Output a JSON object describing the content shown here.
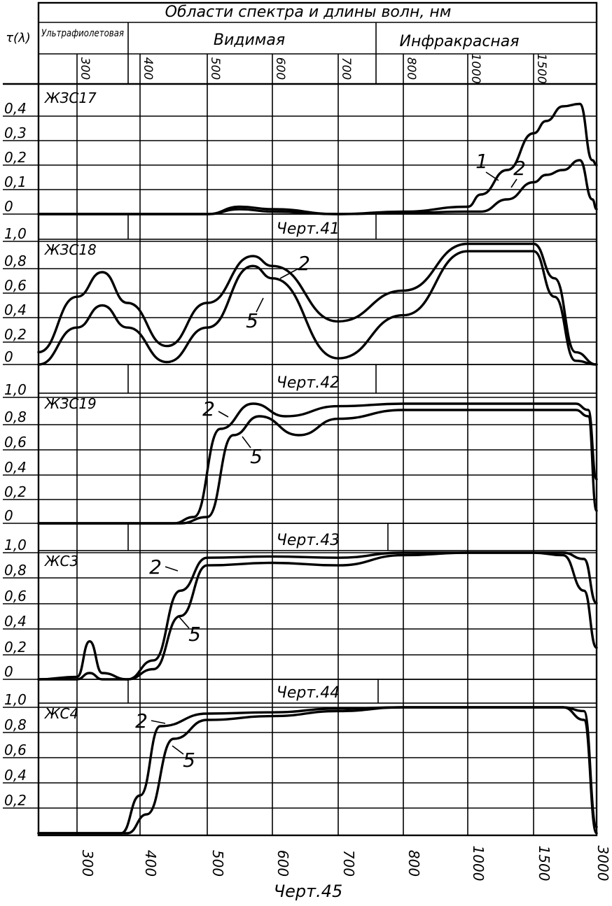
{
  "header": {
    "title": "Области спектра и длины волн, нм",
    "y_symbol": "τ(λ)",
    "regions": [
      "Ультрафиолетовая",
      "Видимая",
      "Инфракрасная"
    ],
    "wavelength_ticks": [
      "300",
      "400",
      "500",
      "600",
      "700",
      "800",
      "1000",
      "1500"
    ]
  },
  "x_axis_ticks": [
    "300",
    "400",
    "500",
    "600",
    "700",
    "800",
    "1000",
    "1500",
    "3000"
  ],
  "chart_data": [
    {
      "type": "line",
      "panel_label": "ЖЗС17",
      "caption": "Черт.41",
      "ylim": [
        0,
        0.5
      ],
      "y_ticks": [
        "0",
        "0,1",
        "0,2",
        "0,3",
        "0,4"
      ],
      "x_scale": "piecewise-log-like (labels at 300, 400, 500, 600, 700, 800, 1000, 1500, 3000 nm)",
      "series": [
        {
          "name": "1",
          "x": [
            250,
            500,
            550,
            600,
            700,
            800,
            1000,
            1100,
            1300,
            1500,
            1800,
            2200,
            2600,
            2900,
            3000
          ],
          "y": [
            0,
            0,
            0.03,
            0.02,
            0,
            0.01,
            0.03,
            0.08,
            0.18,
            0.33,
            0.38,
            0.44,
            0.45,
            0.22,
            0.2
          ]
        },
        {
          "name": "2",
          "x": [
            250,
            500,
            550,
            600,
            700,
            800,
            1000,
            1100,
            1300,
            1500,
            1800,
            2200,
            2600,
            2900,
            3000
          ],
          "y": [
            0,
            0,
            0.02,
            0.01,
            0,
            0.005,
            0.01,
            0.01,
            0.06,
            0.13,
            0.16,
            0.18,
            0.22,
            0.06,
            0.02
          ]
        }
      ]
    },
    {
      "type": "line",
      "panel_label": "ЖЗС18",
      "caption": "Черт.42",
      "ylim": [
        0,
        1.0
      ],
      "y_ticks": [
        "0",
        "0,2",
        "0,4",
        "0,6",
        "0,8",
        "1,0"
      ],
      "series": [
        {
          "name": "2",
          "x": [
            250,
            300,
            340,
            380,
            440,
            500,
            570,
            600,
            700,
            800,
            1000,
            1500,
            2000,
            2500,
            3000
          ],
          "y": [
            0.1,
            0.55,
            0.75,
            0.5,
            0.15,
            0.5,
            0.88,
            0.8,
            0.35,
            0.6,
            0.98,
            0.98,
            0.7,
            0.1,
            0
          ]
        },
        {
          "name": "5",
          "x": [
            250,
            300,
            340,
            380,
            440,
            500,
            570,
            600,
            700,
            800,
            1000,
            1500,
            2000,
            2500,
            3000
          ],
          "y": [
            0,
            0.3,
            0.48,
            0.3,
            0.02,
            0.3,
            0.8,
            0.7,
            0.05,
            0.4,
            0.92,
            0.92,
            0.55,
            0.03,
            0
          ]
        }
      ]
    },
    {
      "type": "line",
      "panel_label": "ЖЗС19",
      "caption": "Черт.43",
      "ylim": [
        0,
        1.0
      ],
      "y_ticks": [
        "0",
        "0,2",
        "0,4",
        "0,6",
        "0,8",
        "1,0"
      ],
      "series": [
        {
          "name": "2",
          "x": [
            250,
            450,
            480,
            520,
            570,
            620,
            700,
            800,
            1000,
            1500,
            2500,
            2800,
            3000
          ],
          "y": [
            0,
            0,
            0.05,
            0.75,
            0.95,
            0.85,
            0.93,
            0.95,
            0.95,
            0.95,
            0.95,
            0.9,
            0.35
          ]
        },
        {
          "name": "5",
          "x": [
            250,
            460,
            500,
            540,
            580,
            640,
            700,
            800,
            1000,
            1500,
            2500,
            2800,
            3000
          ],
          "y": [
            0,
            0,
            0.05,
            0.7,
            0.85,
            0.7,
            0.83,
            0.9,
            0.9,
            0.9,
            0.9,
            0.85,
            0.1
          ]
        }
      ]
    },
    {
      "type": "line",
      "panel_label": "ЖС3",
      "caption": "Черт.44",
      "ylim": [
        0,
        1.0
      ],
      "y_ticks": [
        "0",
        "0,2",
        "0,4",
        "0,6",
        "0,8",
        "1,0"
      ],
      "series": [
        {
          "name": "2",
          "x": [
            250,
            300,
            320,
            340,
            380,
            420,
            460,
            500,
            600,
            700,
            800,
            1000,
            1500,
            2200,
            2700,
            3000
          ],
          "y": [
            0,
            0.02,
            0.3,
            0.05,
            0,
            0.15,
            0.7,
            0.96,
            0.97,
            0.96,
            1.0,
            1.0,
            1.0,
            1.0,
            0.95,
            0.6
          ]
        },
        {
          "name": "5",
          "x": [
            250,
            300,
            320,
            340,
            380,
            420,
            460,
            500,
            600,
            700,
            800,
            1000,
            1500,
            2200,
            2700,
            3000
          ],
          "y": [
            0,
            0,
            0.05,
            0,
            0,
            0.08,
            0.5,
            0.9,
            0.92,
            0.9,
            0.98,
            1.0,
            1.0,
            0.98,
            0.7,
            0.25
          ]
        }
      ]
    },
    {
      "type": "line",
      "panel_label": "ЖС4",
      "caption": "Черт.45",
      "ylim": [
        0,
        1.0
      ],
      "y_ticks": [
        "0,2",
        "0,4",
        "0,6",
        "0,8",
        "1,0"
      ],
      "series": [
        {
          "name": "2",
          "x": [
            250,
            370,
            400,
            430,
            500,
            600,
            700,
            800,
            1000,
            1500,
            2200,
            2700,
            3000
          ],
          "y": [
            0,
            0,
            0.3,
            0.85,
            0.95,
            0.96,
            0.99,
            1.0,
            1.0,
            1.0,
            1.0,
            0.97,
            0.05
          ]
        },
        {
          "name": "5",
          "x": [
            250,
            380,
            410,
            450,
            500,
            600,
            700,
            800,
            1000,
            1500,
            2200,
            2700,
            3000
          ],
          "y": [
            0,
            0,
            0.15,
            0.75,
            0.9,
            0.93,
            0.97,
            1.0,
            1.0,
            1.0,
            1.0,
            0.9,
            0.0
          ]
        }
      ]
    }
  ]
}
